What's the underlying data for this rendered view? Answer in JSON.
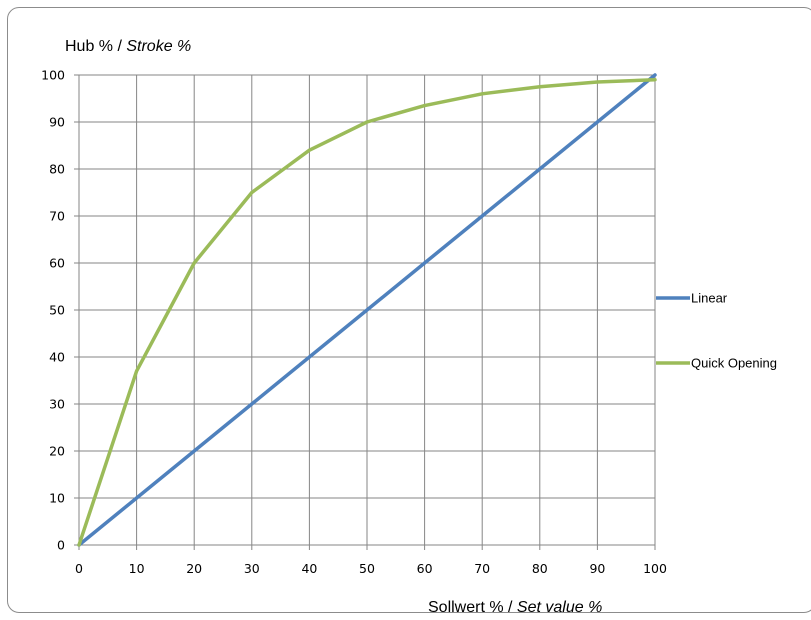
{
  "chart_data": {
    "type": "line",
    "title": "",
    "ylabel": {
      "main": "Hub % / ",
      "italic": "Stroke %"
    },
    "xlabel": {
      "main": "Sollwert % / ",
      "italic": "Set value %"
    },
    "xlim": [
      0,
      100
    ],
    "ylim": [
      0,
      100
    ],
    "x_ticks": [
      0,
      10,
      20,
      30,
      40,
      50,
      60,
      70,
      80,
      90,
      100
    ],
    "y_ticks": [
      0,
      10,
      20,
      30,
      40,
      50,
      60,
      70,
      80,
      90,
      100
    ],
    "grid": true,
    "legend_position": "right",
    "x": [
      0,
      10,
      20,
      30,
      40,
      50,
      60,
      70,
      80,
      90,
      100
    ],
    "series": [
      {
        "name": "Linear",
        "color": "#4f81bd",
        "values": [
          0,
          10,
          20,
          30,
          40,
          50,
          60,
          70,
          80,
          90,
          100
        ]
      },
      {
        "name": "Quick Opening",
        "color": "#9bbb59",
        "values": [
          0,
          37,
          60,
          75,
          84,
          90,
          93.5,
          96,
          97.5,
          98.5,
          99
        ]
      }
    ]
  }
}
